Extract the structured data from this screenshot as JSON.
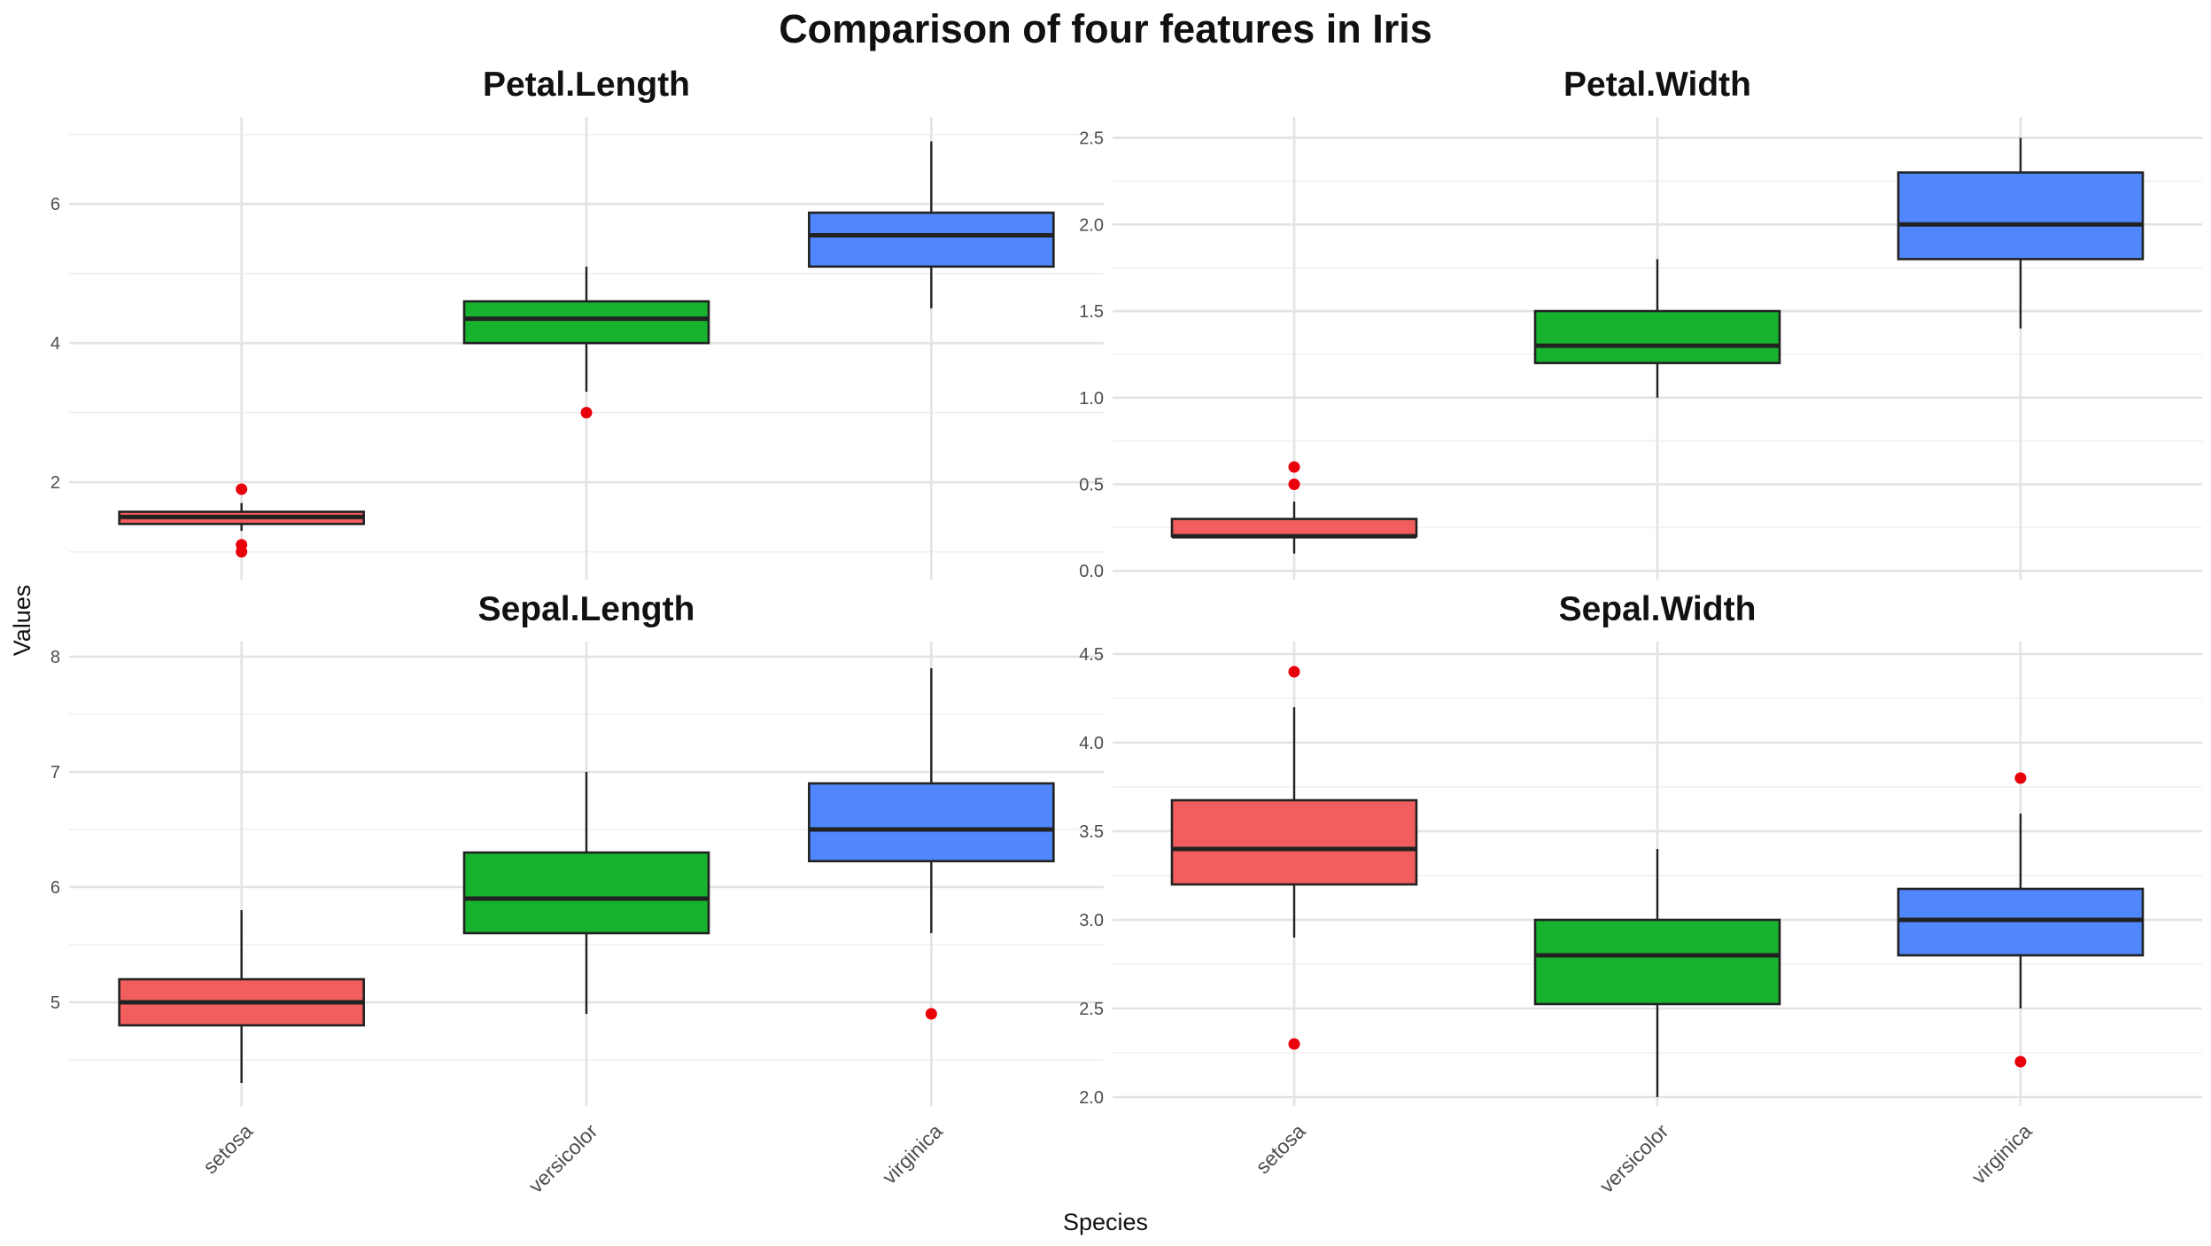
{
  "chart_data": {
    "type": "box",
    "title": "Comparison of four features in Iris",
    "xlabel": "Species",
    "ylabel": "Values",
    "categories": [
      "setosa",
      "versicolor",
      "virginica"
    ],
    "colors": {
      "setosa": "#f25d5d",
      "versicolor": "#17b22e",
      "virginica": "#5087fd",
      "outlier": "#e8000b",
      "box_edge": "#222222"
    },
    "grid": true,
    "legend": "none",
    "panels": [
      {
        "title": "Petal.Length",
        "ylim": [
          0.6,
          7.2
        ],
        "y_major_ticks": [
          2,
          4,
          6
        ],
        "y_minor_ticks": [
          1,
          3,
          5,
          7
        ],
        "tick_labels": [
          "2",
          "4",
          "6"
        ],
        "boxes": [
          {
            "category": "setosa",
            "whisker_low": 1.3,
            "q1": 1.4,
            "median": 1.5,
            "q3": 1.575,
            "whisker_high": 1.7,
            "outliers": [
              1.1,
              1.0,
              1.9
            ]
          },
          {
            "category": "versicolor",
            "whisker_low": 3.3,
            "q1": 4.0,
            "median": 4.35,
            "q3": 4.6,
            "whisker_high": 5.1,
            "outliers": [
              3.0
            ]
          },
          {
            "category": "virginica",
            "whisker_low": 4.5,
            "q1": 5.1,
            "median": 5.55,
            "q3": 5.875,
            "whisker_high": 6.9,
            "outliers": []
          }
        ]
      },
      {
        "title": "Petal.Width",
        "ylim": [
          -0.05,
          2.6
        ],
        "y_major_ticks": [
          0.0,
          0.5,
          1.0,
          1.5,
          2.0,
          2.5
        ],
        "y_minor_ticks": [
          0.25,
          0.75,
          1.25,
          1.75,
          2.25
        ],
        "tick_labels": [
          "0.0",
          "0.5",
          "1.0",
          "1.5",
          "2.0",
          "2.5"
        ],
        "boxes": [
          {
            "category": "setosa",
            "whisker_low": 0.1,
            "q1": 0.2,
            "median": 0.2,
            "q3": 0.3,
            "whisker_high": 0.4,
            "outliers": [
              0.5,
              0.6
            ]
          },
          {
            "category": "versicolor",
            "whisker_low": 1.0,
            "q1": 1.2,
            "median": 1.3,
            "q3": 1.5,
            "whisker_high": 1.8,
            "outliers": []
          },
          {
            "category": "virginica",
            "whisker_low": 1.4,
            "q1": 1.8,
            "median": 2.0,
            "q3": 2.3,
            "whisker_high": 2.5,
            "outliers": []
          }
        ]
      },
      {
        "title": "Sepal.Length",
        "ylim": [
          4.1,
          8.1
        ],
        "y_major_ticks": [
          5,
          6,
          7,
          8
        ],
        "y_minor_ticks": [
          4.5,
          5.5,
          6.5,
          7.5
        ],
        "tick_labels": [
          "5",
          "6",
          "7",
          "8"
        ],
        "boxes": [
          {
            "category": "setosa",
            "whisker_low": 4.3,
            "q1": 4.8,
            "median": 5.0,
            "q3": 5.2,
            "whisker_high": 5.8,
            "outliers": []
          },
          {
            "category": "versicolor",
            "whisker_low": 4.9,
            "q1": 5.6,
            "median": 5.9,
            "q3": 6.3,
            "whisker_high": 7.0,
            "outliers": []
          },
          {
            "category": "virginica",
            "whisker_low": 5.6,
            "q1": 6.225,
            "median": 6.5,
            "q3": 6.9,
            "whisker_high": 7.9,
            "outliers": [
              4.9
            ]
          }
        ]
      },
      {
        "title": "Sepal.Width",
        "ylim": [
          1.95,
          4.55
        ],
        "y_major_ticks": [
          2.0,
          2.5,
          3.0,
          3.5,
          4.0,
          4.5
        ],
        "y_minor_ticks": [
          2.25,
          2.75,
          3.25,
          3.75,
          4.25
        ],
        "tick_labels": [
          "2.0",
          "2.5",
          "3.0",
          "3.5",
          "4.0",
          "4.5"
        ],
        "boxes": [
          {
            "category": "setosa",
            "whisker_low": 2.9,
            "q1": 3.2,
            "median": 3.4,
            "q3": 3.675,
            "whisker_high": 4.2,
            "outliers": [
              4.4,
              2.3
            ]
          },
          {
            "category": "versicolor",
            "whisker_low": 2.0,
            "q1": 2.525,
            "median": 2.8,
            "q3": 3.0,
            "whisker_high": 3.4,
            "outliers": []
          },
          {
            "category": "virginica",
            "whisker_low": 2.5,
            "q1": 2.8,
            "median": 3.0,
            "q3": 3.175,
            "whisker_high": 3.6,
            "outliers": [
              3.8,
              2.2
            ]
          }
        ]
      }
    ]
  }
}
